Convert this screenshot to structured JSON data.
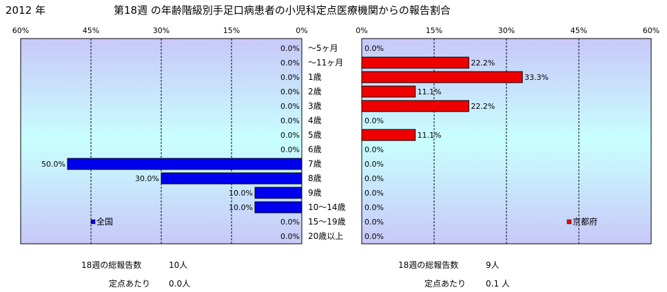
{
  "header": {
    "year": "2012 年",
    "title": "第18週 の年齢階級別手足口病患者の小児科定点医療機関からの報告割合"
  },
  "chart_data": [
    {
      "type": "bar",
      "orientation": "horizontal",
      "direction": "right-to-left",
      "legend": "全国",
      "legend_position": "bottom-left",
      "color": "#0000ee",
      "xlim": [
        0,
        60
      ],
      "ticks": [
        "60%",
        "45%",
        "30%",
        "15%",
        "0%"
      ],
      "grid": true,
      "categories": [
        "～5ヶ月",
        "～11ヶ月",
        "1歳",
        "2歳",
        "3歳",
        "4歳",
        "5歳",
        "6歳",
        "7歳",
        "8歳",
        "9歳",
        "10～14歳",
        "15～19歳",
        "20歳以上"
      ],
      "values": [
        0,
        0,
        0,
        0,
        0,
        0,
        0,
        0,
        50,
        30,
        10,
        10,
        0,
        0
      ],
      "labels": [
        "0.0%",
        "0.0%",
        "0.0%",
        "0.0%",
        "0.0%",
        "0.0%",
        "0.0%",
        "0.0%",
        "50.0%",
        "30.0%",
        "10.0%",
        "10.0%",
        "0.0%",
        "0.0%"
      ]
    },
    {
      "type": "bar",
      "orientation": "horizontal",
      "direction": "left-to-right",
      "legend": "京都府",
      "legend_position": "bottom-right",
      "color": "#ee0000",
      "xlim": [
        0,
        60
      ],
      "ticks": [
        "0%",
        "15%",
        "30%",
        "45%",
        "60%"
      ],
      "grid": true,
      "categories": [
        "～5ヶ月",
        "～11ヶ月",
        "1歳",
        "2歳",
        "3歳",
        "4歳",
        "5歳",
        "6歳",
        "7歳",
        "8歳",
        "9歳",
        "10～14歳",
        "15～19歳",
        "20歳以上"
      ],
      "values": [
        0,
        22.2,
        33.3,
        11.1,
        22.2,
        0,
        11.1,
        0,
        0,
        0,
        0,
        0,
        0,
        0
      ],
      "labels": [
        "0.0%",
        "22.2%",
        "33.3%",
        "11.1%",
        "22.2%",
        "0.0%",
        "11.1%",
        "0.0%",
        "0.0%",
        "0.0%",
        "0.0%",
        "0.0%",
        "0.0%",
        "0.0%"
      ]
    }
  ],
  "footer": {
    "left_total_label": "18週の総報告数",
    "left_total_value": "10人",
    "left_per_label": "定点あたり",
    "left_per_value": "0.0人",
    "right_total_label": "18週の総報告数",
    "right_total_value": "9人",
    "right_per_label": "定点あたり",
    "right_per_value": "0.1 人"
  }
}
